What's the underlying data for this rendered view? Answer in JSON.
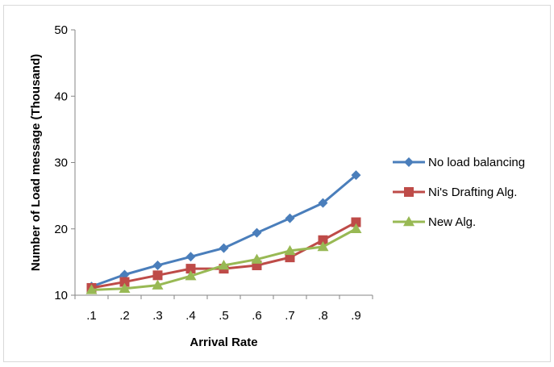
{
  "chart_data": {
    "type": "line",
    "title": "",
    "xlabel": "Arrival Rate",
    "ylabel": "Number of Load message (Thousand)",
    "categories": [
      ".1",
      ".2",
      ".3",
      ".4",
      ".5",
      ".6",
      ".7",
      ".8",
      ".9"
    ],
    "ylim": [
      10,
      50
    ],
    "yticks": [
      10,
      20,
      30,
      40,
      50
    ],
    "grid": false,
    "legend_position": "right",
    "series": [
      {
        "name": "No load balancing",
        "color": "#4a7ebb",
        "marker": "diamond",
        "values": [
          11.3,
          13.1,
          14.5,
          15.8,
          17.1,
          19.4,
          21.6,
          23.9,
          28.1
        ]
      },
      {
        "name": "Ni's  Drafting Alg.",
        "color": "#be4b48",
        "marker": "square",
        "values": [
          11.1,
          12.0,
          13.0,
          14.0,
          14.0,
          14.5,
          15.7,
          18.3,
          21.0
        ]
      },
      {
        "name": "New Alg.",
        "color": "#98b954",
        "marker": "triangle",
        "values": [
          10.8,
          11.0,
          11.5,
          12.9,
          14.5,
          15.4,
          16.7,
          17.3,
          20.0
        ]
      }
    ]
  }
}
